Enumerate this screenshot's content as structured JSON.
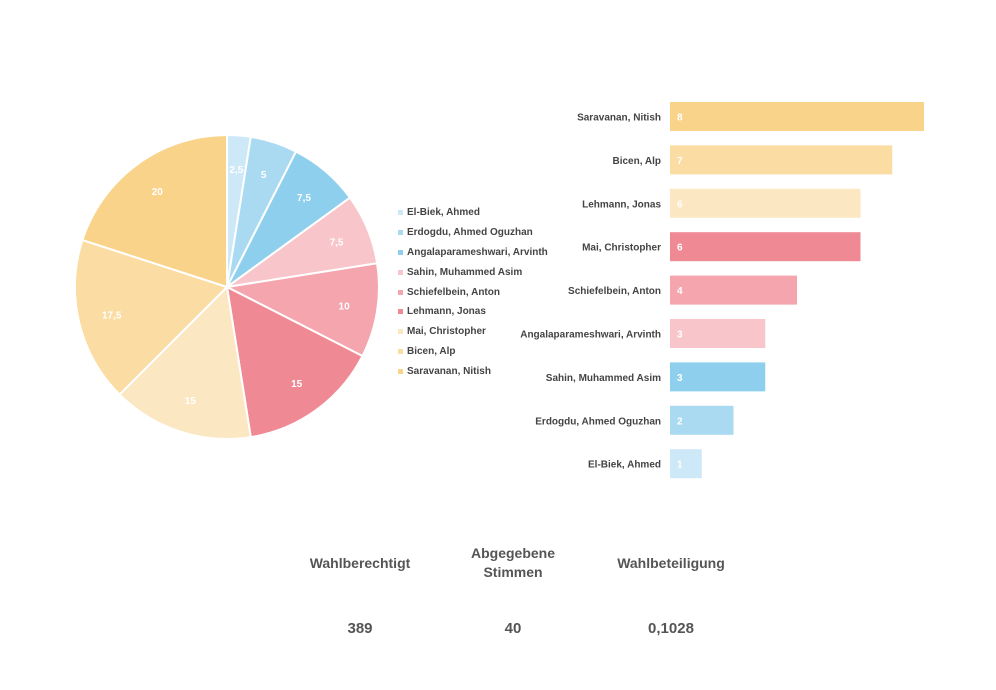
{
  "chart_data": [
    {
      "type": "pie",
      "labels": [
        "El-Biek, Ahmed",
        "Erdogdu, Ahmed Oguzhan",
        "Angalaparameshwari, Arvinth",
        "Sahin, Muhammed Asim",
        "Schiefelbein, Anton",
        "Lehmann, Jonas",
        "Mai, Christopher",
        "Bicen, Alp",
        "Saravanan, Nitish"
      ],
      "values": [
        2.5,
        5,
        7.5,
        7.5,
        10,
        15,
        15,
        17.5,
        20
      ],
      "value_labels": [
        "2,5",
        "5",
        "7,5",
        "7,5",
        "10",
        "15",
        "15",
        "17,5",
        "20"
      ],
      "colors": [
        "#cde8f6",
        "#a9daf1",
        "#8ecfee",
        "#f8c6ca",
        "#f4a5ad",
        "#ef8a95",
        "#fce7c3",
        "#fbdca2",
        "#f9d38a"
      ],
      "legend_position": "right"
    },
    {
      "type": "bar",
      "orientation": "horizontal",
      "categories": [
        "Saravanan, Nitish",
        "Bicen, Alp",
        "Lehmann, Jonas",
        "Mai, Christopher",
        "Schiefelbein, Anton",
        "Angalaparameshwari, Arvinth",
        "Sahin, Muhammed Asim",
        "Erdogdu, Ahmed Oguzhan",
        "El-Biek, Ahmed"
      ],
      "values": [
        8,
        7,
        6,
        6,
        4,
        3,
        3,
        2,
        1
      ],
      "colors": [
        "#f9d38a",
        "#fbdca2",
        "#fce7c3",
        "#ef8a95",
        "#f4a5ad",
        "#f8c6ca",
        "#8ecfee",
        "#a9daf1",
        "#cde8f6"
      ],
      "xlim": [
        0,
        8
      ]
    }
  ],
  "stats": [
    {
      "label": "Wahlberechtigt",
      "value": "389"
    },
    {
      "label": "Abgegebene Stimmen",
      "value": "40"
    },
    {
      "label": "Wahlbeteiligung",
      "value": "0,1028"
    }
  ]
}
